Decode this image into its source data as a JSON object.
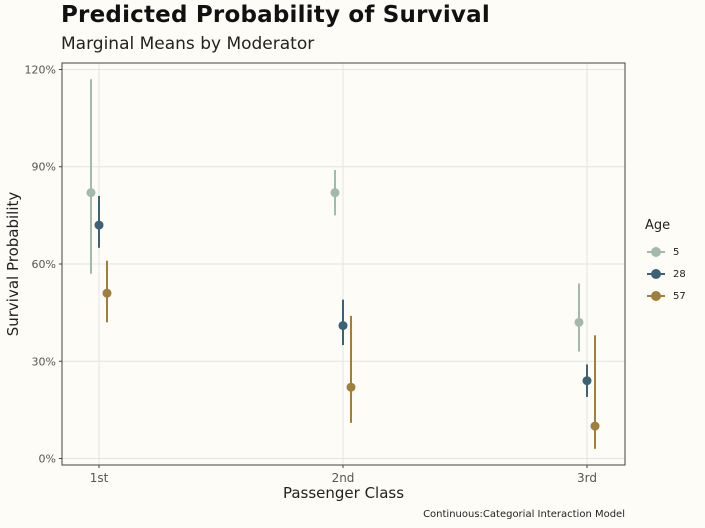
{
  "chart_data": {
    "type": "pointrange",
    "title": "Predicted Probability of Survival",
    "subtitle": "Marginal Means by Moderator",
    "xlabel": "Passenger Class",
    "ylabel": "Survival Probability",
    "caption": "Continuous:Categorial Interaction Model",
    "categories": [
      "1st",
      "2nd",
      "3rd"
    ],
    "ylim": [
      -0.02,
      1.22
    ],
    "yticks": [
      0,
      0.3,
      0.6,
      0.9,
      1.2
    ],
    "ytick_labels": [
      "0%",
      "30%",
      "60%",
      "90%",
      "120%"
    ],
    "grid": true,
    "legend": {
      "title": "Age",
      "position": "right"
    },
    "series": [
      {
        "name": "5",
        "color": "#a3b9ad",
        "estimate": [
          0.82,
          0.82,
          0.42
        ],
        "lower": [
          0.57,
          0.75,
          0.33
        ],
        "upper": [
          1.17,
          0.89,
          0.54
        ]
      },
      {
        "name": "28",
        "color": "#3d6273",
        "estimate": [
          0.72,
          0.41,
          0.24
        ],
        "lower": [
          0.65,
          0.35,
          0.19
        ],
        "upper": [
          0.81,
          0.49,
          0.29
        ]
      },
      {
        "name": "57",
        "color": "#a07f3c",
        "estimate": [
          0.51,
          0.22,
          0.1
        ],
        "lower": [
          0.42,
          0.11,
          0.03
        ],
        "upper": [
          0.61,
          0.44,
          0.38
        ]
      }
    ]
  }
}
